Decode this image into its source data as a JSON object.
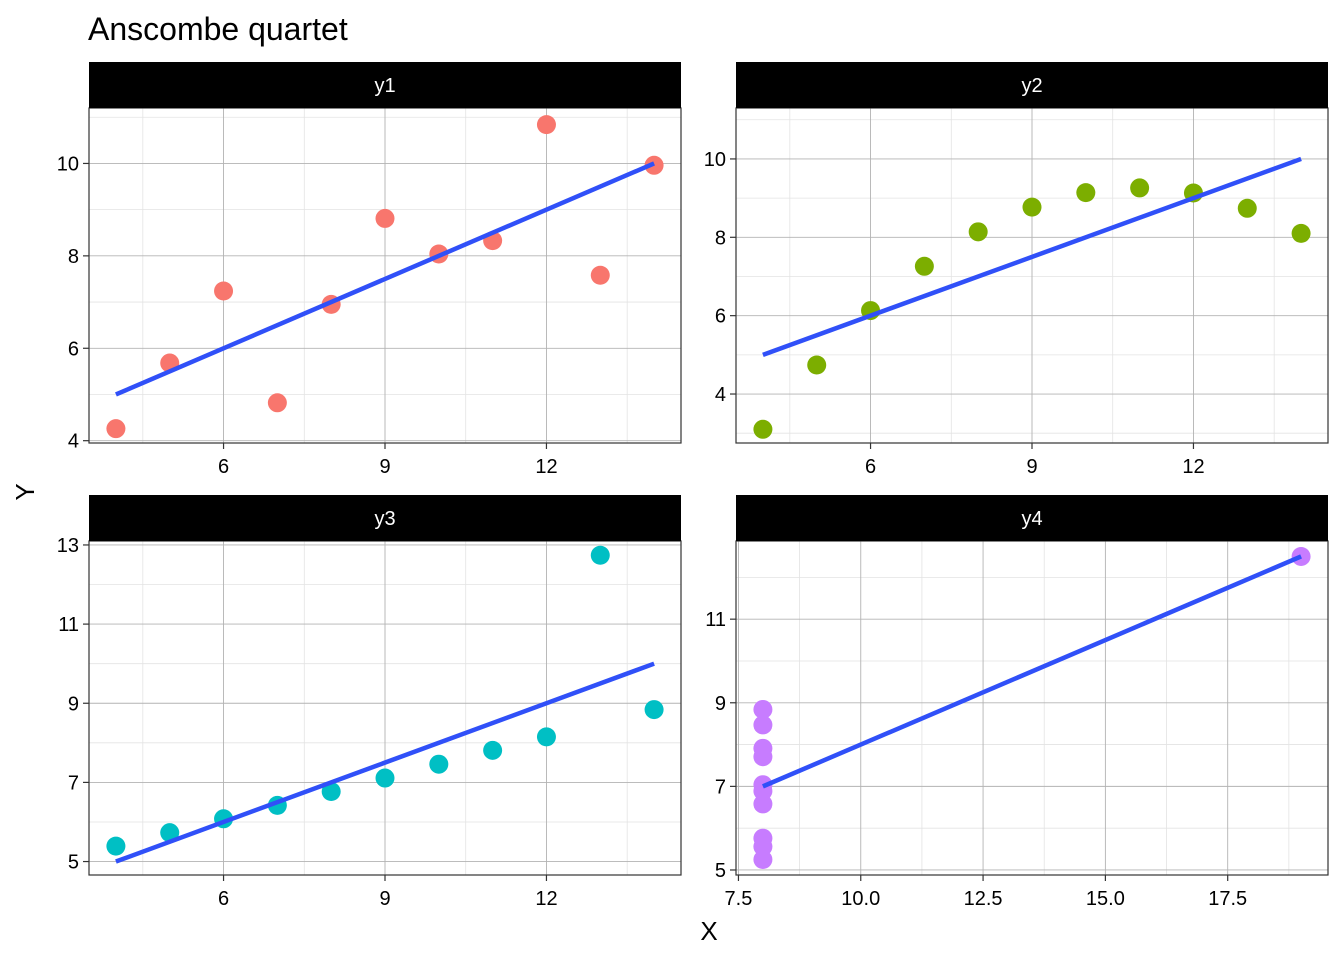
{
  "chart_data": {
    "type": "scatter",
    "title": "Anscombe quartet",
    "xlabel": "X",
    "ylabel": "Y",
    "grid": true,
    "fit_color": "#3050f8",
    "panels": [
      {
        "name": "y1",
        "color": "#f8766d",
        "x": [
          10,
          8,
          13,
          9,
          11,
          14,
          6,
          4,
          12,
          7,
          5
        ],
        "y": [
          8.04,
          6.95,
          7.58,
          8.81,
          8.33,
          9.96,
          7.24,
          4.26,
          10.84,
          4.82,
          5.68
        ],
        "fit": {
          "x": [
            4,
            14
          ],
          "y": [
            5.0,
            10.0
          ]
        },
        "xlim": [
          3.5,
          14.5
        ],
        "ylim": [
          3.95,
          11.2
        ],
        "xticks": [
          6,
          9,
          12
        ],
        "xtick_labels": [
          "6",
          "9",
          "12"
        ],
        "yticks": [
          4,
          6,
          8,
          10
        ],
        "ytick_labels": [
          "4",
          "6",
          "8",
          "10"
        ]
      },
      {
        "name": "y2",
        "color": "#7cae00",
        "x": [
          10,
          8,
          13,
          9,
          11,
          14,
          6,
          4,
          12,
          7,
          5
        ],
        "y": [
          9.14,
          8.14,
          8.74,
          8.77,
          9.26,
          8.1,
          6.13,
          3.1,
          9.13,
          7.26,
          4.74
        ],
        "fit": {
          "x": [
            4,
            14
          ],
          "y": [
            5.0,
            10.0
          ]
        },
        "xlim": [
          3.5,
          14.5
        ],
        "ylim": [
          2.75,
          11.3
        ],
        "xticks": [
          6,
          9,
          12
        ],
        "xtick_labels": [
          "6",
          "9",
          "12"
        ],
        "yticks": [
          4,
          6,
          8,
          10
        ],
        "ytick_labels": [
          "4",
          "6",
          "8",
          "10"
        ]
      },
      {
        "name": "y3",
        "color": "#00bfc4",
        "x": [
          10,
          8,
          13,
          9,
          11,
          14,
          6,
          4,
          12,
          7,
          5
        ],
        "y": [
          7.46,
          6.77,
          12.74,
          7.11,
          7.81,
          8.84,
          6.08,
          5.39,
          8.15,
          6.42,
          5.73
        ],
        "fit": {
          "x": [
            4,
            14
          ],
          "y": [
            5.0,
            10.0
          ]
        },
        "xlim": [
          3.5,
          14.5
        ],
        "ylim": [
          4.66,
          13.1
        ],
        "xticks": [
          6,
          9,
          12
        ],
        "xtick_labels": [
          "6",
          "9",
          "12"
        ],
        "yticks": [
          5,
          7,
          9,
          11,
          13
        ],
        "ytick_labels": [
          "5",
          "7",
          "9",
          "11",
          "13"
        ]
      },
      {
        "name": "y4",
        "color": "#c77cff",
        "x": [
          8,
          8,
          8,
          8,
          8,
          8,
          8,
          19,
          8,
          8,
          8
        ],
        "y": [
          6.58,
          5.76,
          7.71,
          8.84,
          8.47,
          7.04,
          5.25,
          12.5,
          5.56,
          7.91,
          6.89
        ],
        "fit": {
          "x": [
            8,
            19
          ],
          "y": [
            7.0,
            12.5
          ]
        },
        "xlim": [
          7.45,
          19.55
        ],
        "ylim": [
          4.88,
          12.87
        ],
        "xticks": [
          7.5,
          10.0,
          12.5,
          15.0,
          17.5
        ],
        "xtick_labels": [
          "7.5",
          "10.0",
          "12.5",
          "15.0",
          "17.5"
        ],
        "yticks": [
          5,
          7,
          9,
          11
        ],
        "ytick_labels": [
          "5",
          "7",
          "9",
          "11"
        ]
      }
    ]
  }
}
